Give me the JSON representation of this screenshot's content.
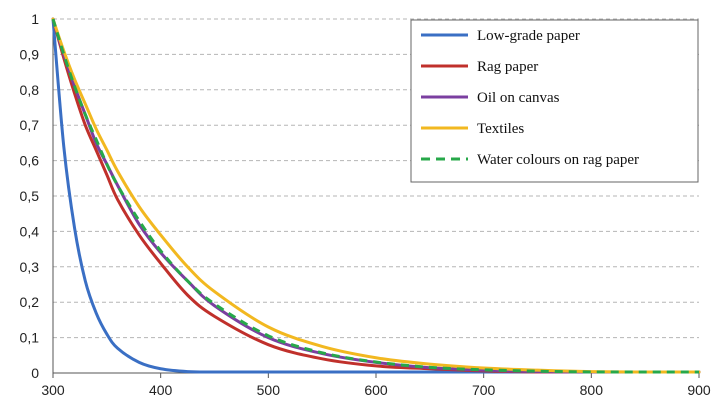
{
  "chart_data": {
    "type": "line",
    "title": "",
    "xlabel": "",
    "ylabel": "",
    "xlim": [
      300,
      900
    ],
    "ylim": [
      0,
      1
    ],
    "x_ticks": [
      300,
      400,
      500,
      600,
      700,
      800,
      900
    ],
    "x_tick_labels": [
      "300",
      "400",
      "500",
      "600",
      "700",
      "800",
      "900"
    ],
    "y_ticks": [
      0,
      0.1,
      0.2,
      0.3,
      0.4,
      0.5,
      0.6,
      0.7,
      0.8,
      0.9,
      1
    ],
    "y_tick_labels": [
      "0",
      "0,1",
      "0,2",
      "0,3",
      "0,4",
      "0,5",
      "0,6",
      "0,7",
      "0,8",
      "0,9",
      "1"
    ],
    "grid": "horizontal dashed",
    "legend_position": "top-right",
    "x": [
      300,
      310,
      320,
      330,
      340,
      350,
      360,
      380,
      400,
      425,
      450,
      500,
      550,
      600,
      650,
      700,
      750,
      800,
      850,
      900
    ],
    "series": [
      {
        "name": "Low-grade paper",
        "color": "#3a6fc4",
        "style": "solid",
        "values": [
          1.0,
          0.64,
          0.41,
          0.26,
          0.17,
          0.11,
          0.07,
          0.03,
          0.012,
          0.004,
          0.001,
          0.0,
          0.0,
          0.0,
          0.0,
          0.0,
          0.0,
          0.0,
          0.0,
          0.0
        ]
      },
      {
        "name": "Rag paper",
        "color": "#c0302b",
        "style": "solid",
        "values": [
          1.0,
          0.89,
          0.79,
          0.7,
          0.63,
          0.56,
          0.49,
          0.39,
          0.31,
          0.22,
          0.16,
          0.08,
          0.04,
          0.02,
          0.012,
          0.006,
          0.003,
          0.001,
          0.0,
          0.0
        ]
      },
      {
        "name": "Oil on canvas",
        "color": "#7b3fa0",
        "style": "solid",
        "values": [
          1.0,
          0.9,
          0.81,
          0.73,
          0.65,
          0.59,
          0.53,
          0.42,
          0.34,
          0.26,
          0.19,
          0.1,
          0.055,
          0.03,
          0.015,
          0.008,
          0.004,
          0.002,
          0.001,
          0.0
        ]
      },
      {
        "name": "Textiles",
        "color": "#f2b820",
        "style": "solid",
        "values": [
          1.0,
          0.91,
          0.83,
          0.76,
          0.69,
          0.63,
          0.57,
          0.47,
          0.39,
          0.3,
          0.23,
          0.13,
          0.075,
          0.043,
          0.025,
          0.014,
          0.008,
          0.004,
          0.002,
          0.001
        ]
      },
      {
        "name": "Water colours on rag paper",
        "color": "#27a84a",
        "style": "dashed",
        "values": [
          1.0,
          0.9,
          0.81,
          0.73,
          0.66,
          0.59,
          0.53,
          0.43,
          0.345,
          0.26,
          0.195,
          0.105,
          0.057,
          0.031,
          0.016,
          0.009,
          0.005,
          0.002,
          0.001,
          0.0
        ]
      }
    ]
  }
}
